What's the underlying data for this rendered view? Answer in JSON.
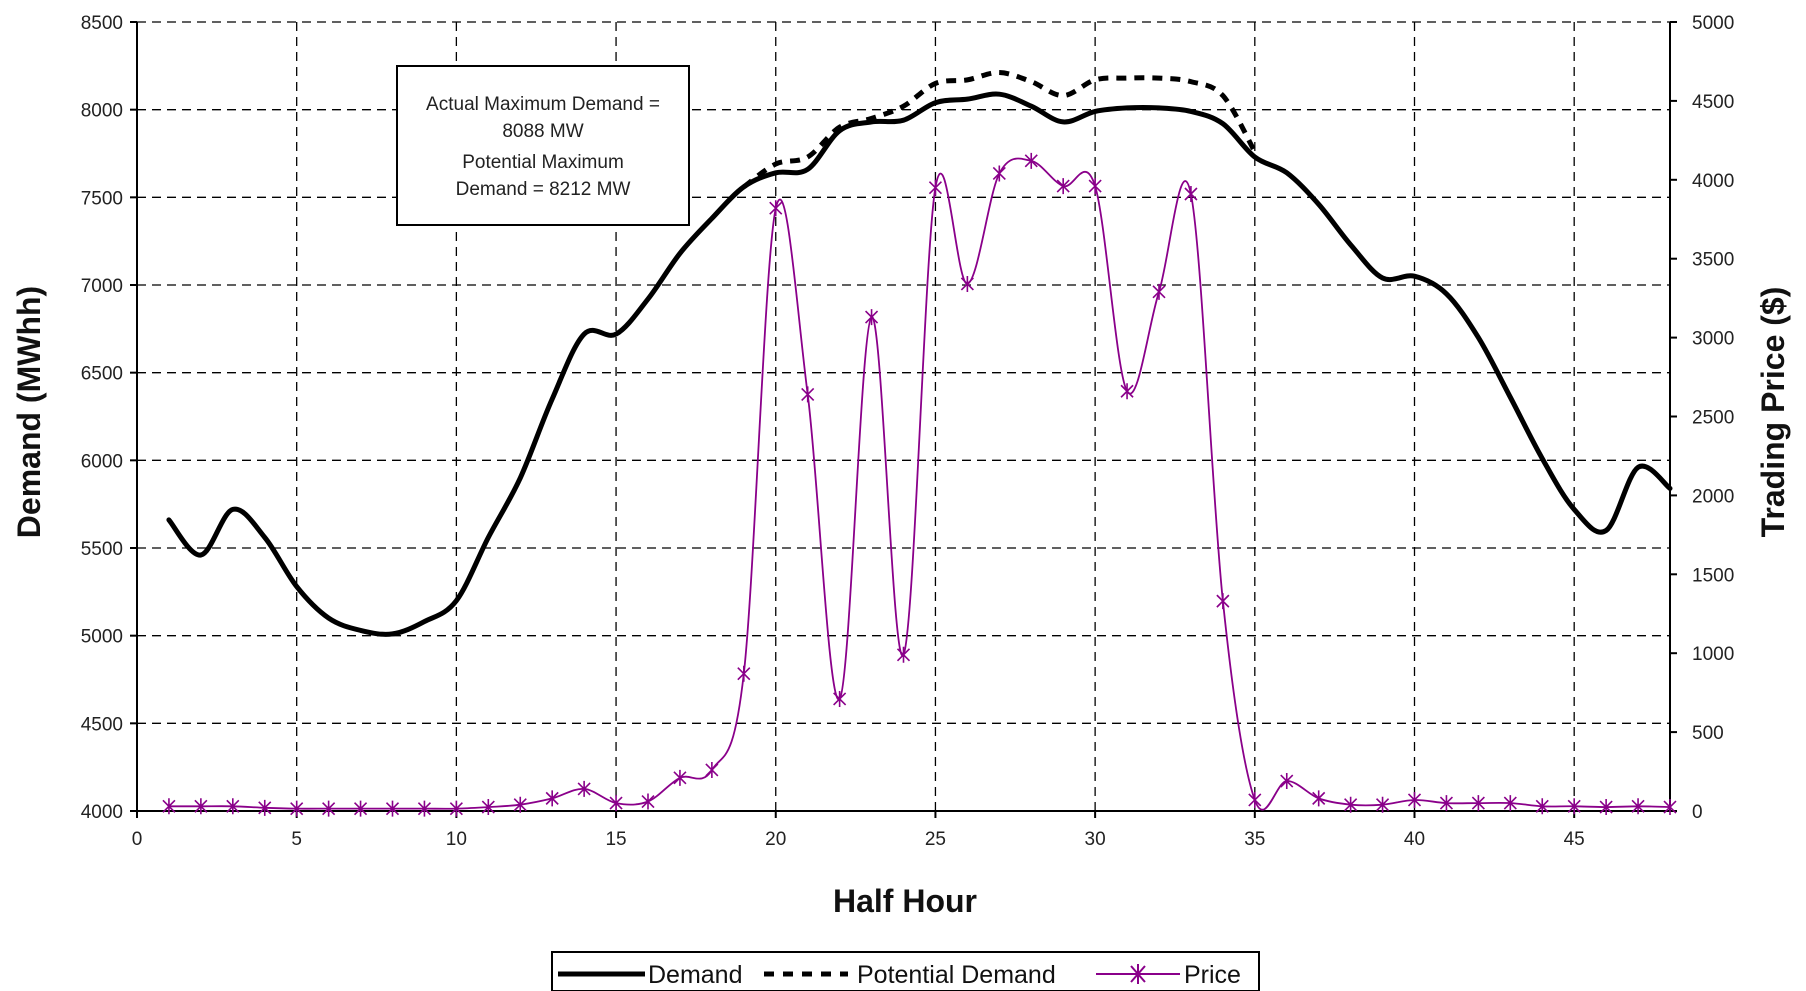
{
  "chart_data": {
    "type": "line",
    "xlabel": "Half Hour",
    "ylabel": "Demand (MWhh)",
    "y2label": "Trading Price ($)",
    "xlim": [
      0,
      48
    ],
    "ylim": [
      4000,
      8500
    ],
    "y2lim": [
      0,
      5000
    ],
    "x_ticks": [
      0,
      5,
      10,
      15,
      20,
      25,
      30,
      35,
      40,
      45
    ],
    "y_ticks": [
      4000,
      4500,
      5000,
      5500,
      6000,
      6500,
      7000,
      7500,
      8000,
      8500
    ],
    "y2_ticks": [
      0,
      500,
      1000,
      1500,
      2000,
      2500,
      3000,
      3500,
      4000,
      4500,
      5000
    ],
    "grid": true,
    "legend_position": "bottom",
    "annotation": [
      "Actual Maximum Demand =",
      "8088 MW",
      "Potential Maximum",
      "Demand = 8212 MW"
    ],
    "x": [
      1,
      2,
      3,
      4,
      5,
      6,
      7,
      8,
      9,
      10,
      11,
      12,
      13,
      14,
      15,
      16,
      17,
      18,
      19,
      20,
      21,
      22,
      23,
      24,
      25,
      26,
      27,
      28,
      29,
      30,
      31,
      32,
      33,
      34,
      35,
      36,
      37,
      38,
      39,
      40,
      41,
      42,
      43,
      44,
      45,
      46,
      47,
      48
    ],
    "series": [
      {
        "name": "Demand",
        "axis": "left",
        "style": "solid",
        "color": "#000000",
        "values": [
          5660,
          5460,
          5720,
          5560,
          5280,
          5100,
          5030,
          5010,
          5080,
          5200,
          5560,
          5900,
          6350,
          6720,
          6720,
          6920,
          7180,
          7380,
          7560,
          7640,
          7660,
          7880,
          7930,
          7940,
          8040,
          8060,
          8088,
          8020,
          7930,
          7990,
          8010,
          8010,
          7990,
          7920,
          7730,
          7640,
          7460,
          7230,
          7040,
          7050,
          6950,
          6700,
          6360,
          6010,
          5720,
          5600,
          5960,
          5840
        ]
      },
      {
        "name": "Potential Demand",
        "axis": "left",
        "style": "dashed",
        "color": "#000000",
        "values": [
          null,
          null,
          null,
          null,
          null,
          null,
          null,
          null,
          null,
          null,
          null,
          null,
          null,
          null,
          null,
          null,
          null,
          null,
          7560,
          7690,
          7730,
          7900,
          7950,
          8020,
          8150,
          8170,
          8212,
          8160,
          8080,
          8170,
          8180,
          8180,
          8160,
          8080,
          7760,
          null,
          null,
          null,
          null,
          null,
          null,
          null,
          null,
          null,
          null,
          null,
          null,
          null
        ]
      },
      {
        "name": "Price",
        "axis": "right",
        "style": "marker-x",
        "color": "#8a008a",
        "values": [
          30,
          30,
          30,
          20,
          15,
          15,
          15,
          15,
          15,
          15,
          25,
          40,
          80,
          140,
          50,
          60,
          210,
          260,
          870,
          3820,
          2640,
          710,
          3130,
          990,
          3950,
          3340,
          4040,
          4120,
          3960,
          3960,
          2660,
          3290,
          3910,
          1330,
          70,
          190,
          80,
          40,
          40,
          70,
          50,
          50,
          50,
          30,
          30,
          25,
          30,
          25
        ]
      }
    ]
  }
}
